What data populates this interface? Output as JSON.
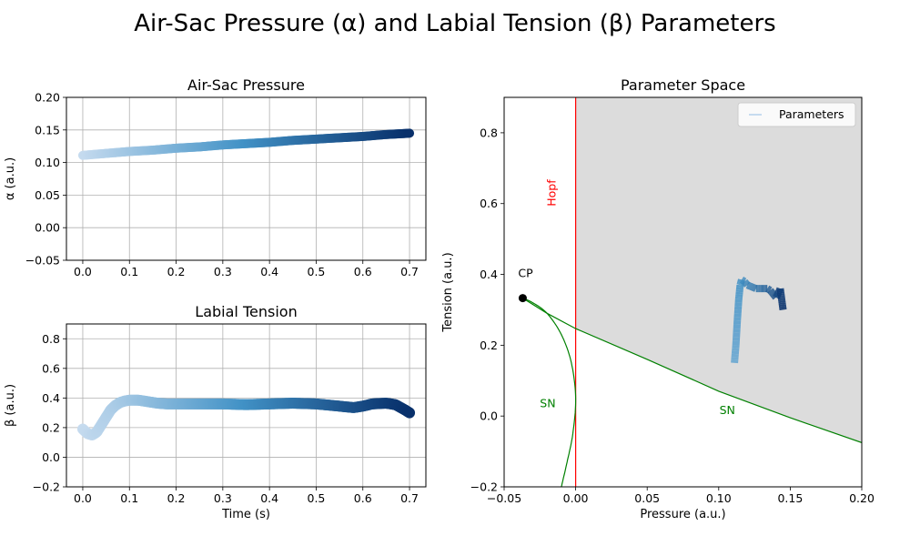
{
  "figure": {
    "suptitle": "Air-Sac Pressure (α) and Labial Tension (β) Parameters"
  },
  "colors": {
    "accent_dark": "#08306b",
    "accent_mid": "#4292c6",
    "accent_light": "#c6dbef",
    "hopf_line": "#ff0000",
    "sn_curve": "#008000",
    "region_fill": "#dcdcdc",
    "grid": "#b0b0b0",
    "cp_marker": "#000000"
  },
  "chart_data": [
    {
      "id": "pressure",
      "type": "scatter",
      "title": "Air-Sac Pressure",
      "xlabel": "",
      "ylabel": "α (a.u.)",
      "xlim": [
        -0.035,
        0.735
      ],
      "ylim": [
        -0.05,
        0.2
      ],
      "xticks": [
        0.0,
        0.1,
        0.2,
        0.3,
        0.4,
        0.5,
        0.6,
        0.7
      ],
      "xtick_labels": [
        "0.0",
        "0.1",
        "0.2",
        "0.3",
        "0.4",
        "0.5",
        "0.6",
        "0.7"
      ],
      "yticks": [
        -0.05,
        0.0,
        0.05,
        0.1,
        0.15,
        0.2
      ],
      "ytick_labels": [
        "−0.05",
        "0.00",
        "0.05",
        "0.10",
        "0.15",
        "0.20"
      ],
      "grid": true,
      "colormap": "Blues",
      "color_by": "time",
      "x": [
        0.0,
        0.05,
        0.1,
        0.15,
        0.2,
        0.25,
        0.3,
        0.35,
        0.4,
        0.45,
        0.5,
        0.55,
        0.6,
        0.65,
        0.7
      ],
      "y": [
        0.111,
        0.114,
        0.117,
        0.119,
        0.122,
        0.124,
        0.127,
        0.129,
        0.131,
        0.134,
        0.136,
        0.138,
        0.14,
        0.143,
        0.145
      ]
    },
    {
      "id": "tension",
      "type": "scatter",
      "title": "Labial Tension",
      "xlabel": "Time (s)",
      "ylabel": "β (a.u.)",
      "xlim": [
        -0.035,
        0.735
      ],
      "ylim": [
        -0.2,
        0.9
      ],
      "xticks": [
        0.0,
        0.1,
        0.2,
        0.3,
        0.4,
        0.5,
        0.6,
        0.7
      ],
      "xtick_labels": [
        "0.0",
        "0.1",
        "0.2",
        "0.3",
        "0.4",
        "0.5",
        "0.6",
        "0.7"
      ],
      "yticks": [
        -0.2,
        0.0,
        0.2,
        0.4,
        0.6,
        0.8
      ],
      "ytick_labels": [
        "−0.2",
        "0.0",
        "0.2",
        "0.4",
        "0.6",
        "0.8"
      ],
      "grid": true,
      "colormap": "Blues",
      "color_by": "time",
      "x": [
        0.0,
        0.01,
        0.02,
        0.03,
        0.04,
        0.05,
        0.06,
        0.07,
        0.08,
        0.09,
        0.1,
        0.12,
        0.14,
        0.16,
        0.18,
        0.2,
        0.25,
        0.3,
        0.35,
        0.4,
        0.45,
        0.5,
        0.55,
        0.58,
        0.6,
        0.62,
        0.65,
        0.67,
        0.69,
        0.7
      ],
      "y": [
        0.19,
        0.16,
        0.15,
        0.17,
        0.22,
        0.27,
        0.32,
        0.35,
        0.37,
        0.38,
        0.385,
        0.385,
        0.375,
        0.365,
        0.36,
        0.36,
        0.36,
        0.36,
        0.355,
        0.36,
        0.365,
        0.36,
        0.345,
        0.335,
        0.345,
        0.36,
        0.365,
        0.355,
        0.32,
        0.3
      ]
    },
    {
      "id": "parameter_space",
      "type": "line",
      "title": "Parameter Space",
      "xlabel": "Pressure (a.u.)",
      "ylabel": "Tension (a.u.)",
      "xlim": [
        -0.05,
        0.2
      ],
      "ylim": [
        -0.2,
        0.9
      ],
      "xticks": [
        -0.05,
        0.0,
        0.05,
        0.1,
        0.15,
        0.2
      ],
      "xtick_labels": [
        "−0.05",
        "0.00",
        "0.05",
        "0.10",
        "0.15",
        "0.20"
      ],
      "yticks": [
        -0.2,
        0.0,
        0.2,
        0.4,
        0.6,
        0.8
      ],
      "ytick_labels": [
        "−0.2",
        "0.0",
        "0.2",
        "0.4",
        "0.6",
        "0.8"
      ],
      "grid": false,
      "legend": {
        "placement": "top-right",
        "entries": [
          "Parameters"
        ]
      },
      "trajectory": {
        "name": "Parameters",
        "x": [
          0.111,
          0.112,
          0.113,
          0.114,
          0.115,
          0.116,
          0.118,
          0.12,
          0.123,
          0.126,
          0.129,
          0.131,
          0.134,
          0.136,
          0.138,
          0.14,
          0.142,
          0.143,
          0.144,
          0.145
        ],
        "y": [
          0.15,
          0.2,
          0.27,
          0.33,
          0.37,
          0.385,
          0.38,
          0.37,
          0.365,
          0.36,
          0.36,
          0.36,
          0.36,
          0.355,
          0.345,
          0.335,
          0.35,
          0.36,
          0.33,
          0.3
        ]
      },
      "hopf": {
        "label": "Hopf",
        "x": 0.0
      },
      "sn_upper": {
        "label": "SN",
        "x": [
          -0.037,
          -0.02,
          0.0,
          0.05,
          0.1,
          0.15,
          0.2
        ],
        "y": [
          0.333,
          0.29,
          0.247,
          0.16,
          0.07,
          -0.005,
          -0.075
        ]
      },
      "sn_lower": {
        "label": "SN",
        "x": [
          -0.037,
          -0.03,
          -0.02,
          -0.01,
          -0.003,
          0.0,
          -0.002,
          -0.006,
          -0.01
        ],
        "y": [
          0.333,
          0.32,
          0.29,
          0.23,
          0.15,
          0.05,
          -0.05,
          -0.13,
          -0.2
        ]
      },
      "cusp_point": {
        "label": "CP",
        "x": -0.037,
        "y": 0.333
      },
      "shaded_region": "oscillatory"
    }
  ]
}
